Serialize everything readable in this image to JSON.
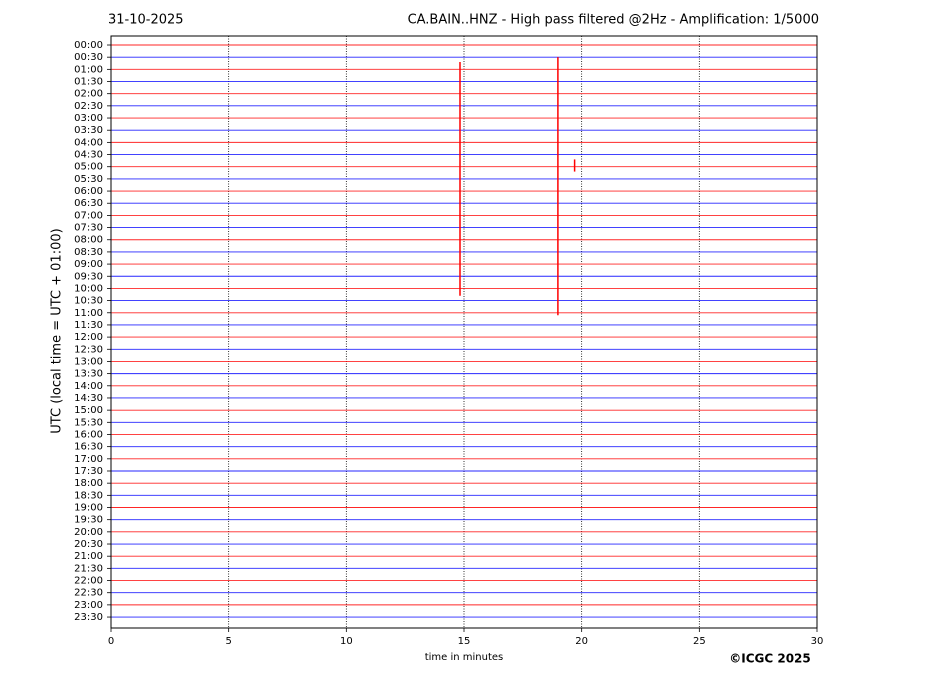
{
  "chart_data": {
    "type": "helicorder",
    "date": "31-10-2025",
    "title": "CA.BAIN..HNZ - High pass filtered @2Hz - Amplification: 1/5000",
    "ylabel": "UTC (local time = UTC + 01:00)",
    "xlabel": "time in minutes",
    "credit": "©ICGC 2025",
    "xlim": [
      0,
      30
    ],
    "xticks": [
      0,
      5,
      10,
      15,
      20,
      25,
      30
    ],
    "grid": true,
    "ylim": [
      23.95,
      -0.37
    ],
    "yticks": [
      {
        "value": 0,
        "label": "00:00"
      },
      {
        "value": 0.5,
        "label": "00:30"
      },
      {
        "value": 1,
        "label": "01:00"
      },
      {
        "value": 1.5,
        "label": "01:30"
      },
      {
        "value": 2,
        "label": "02:00"
      },
      {
        "value": 2.5,
        "label": "02:30"
      },
      {
        "value": 3,
        "label": "03:00"
      },
      {
        "value": 3.5,
        "label": "03:30"
      },
      {
        "value": 4,
        "label": "04:00"
      },
      {
        "value": 4.5,
        "label": "04:30"
      },
      {
        "value": 5,
        "label": "05:00"
      },
      {
        "value": 5.5,
        "label": "05:30"
      },
      {
        "value": 6,
        "label": "06:00"
      },
      {
        "value": 6.5,
        "label": "06:30"
      },
      {
        "value": 7,
        "label": "07:00"
      },
      {
        "value": 7.5,
        "label": "07:30"
      },
      {
        "value": 8,
        "label": "08:00"
      },
      {
        "value": 8.5,
        "label": "08:30"
      },
      {
        "value": 9,
        "label": "09:00"
      },
      {
        "value": 9.5,
        "label": "09:30"
      },
      {
        "value": 10,
        "label": "10:00"
      },
      {
        "value": 10.5,
        "label": "10:30"
      },
      {
        "value": 11,
        "label": "11:00"
      },
      {
        "value": 11.5,
        "label": "11:30"
      },
      {
        "value": 12,
        "label": "12:00"
      },
      {
        "value": 12.5,
        "label": "12:30"
      },
      {
        "value": 13,
        "label": "13:00"
      },
      {
        "value": 13.5,
        "label": "13:30"
      },
      {
        "value": 14,
        "label": "14:00"
      },
      {
        "value": 14.5,
        "label": "14:30"
      },
      {
        "value": 15,
        "label": "15:00"
      },
      {
        "value": 15.5,
        "label": "15:30"
      },
      {
        "value": 16,
        "label": "16:00"
      },
      {
        "value": 16.5,
        "label": "16:30"
      },
      {
        "value": 17,
        "label": "17:00"
      },
      {
        "value": 17.5,
        "label": "17:30"
      },
      {
        "value": 18,
        "label": "18:00"
      },
      {
        "value": 18.5,
        "label": "18:30"
      },
      {
        "value": 19,
        "label": "19:00"
      },
      {
        "value": 19.5,
        "label": "19:30"
      },
      {
        "value": 20,
        "label": "20:00"
      },
      {
        "value": 20.5,
        "label": "20:30"
      },
      {
        "value": 21,
        "label": "21:00"
      },
      {
        "value": 21.5,
        "label": "21:30"
      },
      {
        "value": 22,
        "label": "22:00"
      },
      {
        "value": 22.5,
        "label": "22:30"
      },
      {
        "value": 23,
        "label": "23:00"
      },
      {
        "value": 23.5,
        "label": "23:30"
      }
    ],
    "trace_colors": [
      "#ff0000",
      "#0000ff"
    ],
    "events": [
      {
        "x": 14.83,
        "y": [
          0.7,
          10.3
        ]
      },
      {
        "x": 18.99,
        "y": [
          0.5,
          11.1
        ]
      },
      {
        "x": 19.7,
        "y": [
          4.7,
          5.2
        ]
      }
    ]
  }
}
